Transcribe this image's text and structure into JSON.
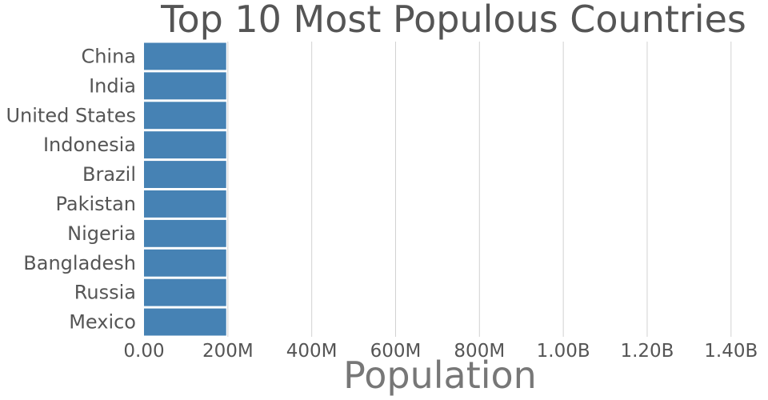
{
  "chart_data": {
    "type": "bar",
    "orientation": "horizontal",
    "title": "Top 10 Most Populous Countries",
    "xlabel": "Population",
    "ylabel": "",
    "categories": [
      "China",
      "India",
      "United States",
      "Indonesia",
      "Brazil",
      "Pakistan",
      "Nigeria",
      "Bangladesh",
      "Russia",
      "Mexico"
    ],
    "values": [
      196000000,
      196000000,
      196000000,
      196000000,
      196000000,
      196000000,
      196000000,
      196000000,
      196000000,
      196000000
    ],
    "xlim": [
      0,
      1450000000
    ],
    "xticks": [
      0,
      200000000,
      400000000,
      600000000,
      800000000,
      1000000000,
      1200000000,
      1400000000
    ],
    "xtick_labels": [
      "0.00",
      "200M",
      "400M",
      "600M",
      "800M",
      "1.00B",
      "1.20B",
      "1.40B"
    ],
    "grid": "x",
    "legend": "none",
    "bar_color": "#4682b4",
    "gridline_color": "#d2d2d2",
    "text_color": "#555555"
  }
}
